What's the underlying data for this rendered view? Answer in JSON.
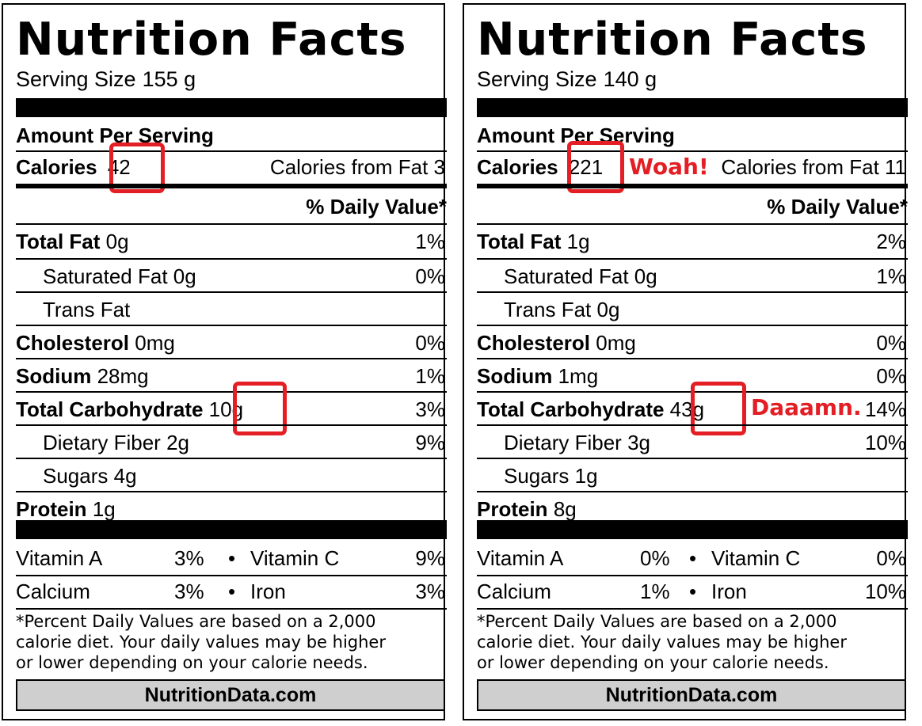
{
  "annotation_color": "#e31e24",
  "labels": [
    {
      "title": "Nutrition Facts",
      "serving_label": "Serving Size",
      "serving_value": "155 g",
      "amount_per_serving": "Amount Per Serving",
      "calories_label": "Calories",
      "calories_value": "42",
      "calories_from_fat": "Calories from Fat 3",
      "calorie_annotation": "",
      "daily_value_header": "% Daily Value*",
      "total_fat": {
        "label": "Total Fat",
        "amount": "0g",
        "dv": "1%"
      },
      "saturated_fat": {
        "label": "Saturated Fat",
        "amount": "0g",
        "dv": "0%"
      },
      "trans_fat": {
        "label": "Trans Fat",
        "amount": "",
        "dv": ""
      },
      "cholesterol": {
        "label": "Cholesterol",
        "amount": "0mg",
        "dv": "0%"
      },
      "sodium": {
        "label": "Sodium",
        "amount": "28mg",
        "dv": "1%"
      },
      "total_carbohydrate": {
        "label": "Total Carbohydrate",
        "amount": "10g",
        "dv": "3%"
      },
      "carb_annotation": "",
      "dietary_fiber": {
        "label": "Dietary Fiber",
        "amount": "2g",
        "dv": "9%"
      },
      "sugars": {
        "label": "Sugars",
        "amount": "4g"
      },
      "protein": {
        "label": "Protein",
        "amount": "1g"
      },
      "vitamin_a": {
        "label": "Vitamin A",
        "dv": "3%"
      },
      "vitamin_c": {
        "label": "Vitamin C",
        "dv": "9%"
      },
      "calcium": {
        "label": "Calcium",
        "dv": "3%"
      },
      "iron": {
        "label": "Iron",
        "dv": "3%"
      },
      "bullet": "•",
      "footnote": [
        "*Percent Daily Values are based on a 2,000",
        "calorie diet. Your daily values may be higher",
        "or lower depending on your calorie needs."
      ],
      "brand": "NutritionData.com"
    },
    {
      "title": "Nutrition Facts",
      "serving_label": "Serving Size",
      "serving_value": "140 g",
      "amount_per_serving": "Amount Per Serving",
      "calories_label": "Calories",
      "calories_value": "221",
      "calories_from_fat": "Calories from Fat 11",
      "calorie_annotation": "Woah!",
      "daily_value_header": "% Daily Value*",
      "total_fat": {
        "label": "Total Fat",
        "amount": "1g",
        "dv": "2%"
      },
      "saturated_fat": {
        "label": "Saturated Fat",
        "amount": "0g",
        "dv": "1%"
      },
      "trans_fat": {
        "label": "Trans Fat",
        "amount": "0g",
        "dv": ""
      },
      "cholesterol": {
        "label": "Cholesterol",
        "amount": "0mg",
        "dv": "0%"
      },
      "sodium": {
        "label": "Sodium",
        "amount": "1mg",
        "dv": "0%"
      },
      "total_carbohydrate": {
        "label": "Total Carbohydrate",
        "amount": "43g",
        "dv": "14%"
      },
      "carb_annotation": "Daaamn.",
      "dietary_fiber": {
        "label": "Dietary Fiber",
        "amount": "3g",
        "dv": "10%"
      },
      "sugars": {
        "label": "Sugars",
        "amount": "1g"
      },
      "protein": {
        "label": "Protein",
        "amount": "8g"
      },
      "vitamin_a": {
        "label": "Vitamin A",
        "dv": "0%"
      },
      "vitamin_c": {
        "label": "Vitamin C",
        "dv": "0%"
      },
      "calcium": {
        "label": "Calcium",
        "dv": "1%"
      },
      "iron": {
        "label": "Iron",
        "dv": "10%"
      },
      "bullet": "•",
      "footnote": [
        "*Percent Daily Values are based on a 2,000",
        "calorie diet. Your daily values may be higher",
        "or lower depending on your calorie needs."
      ],
      "brand": "NutritionData.com"
    }
  ]
}
